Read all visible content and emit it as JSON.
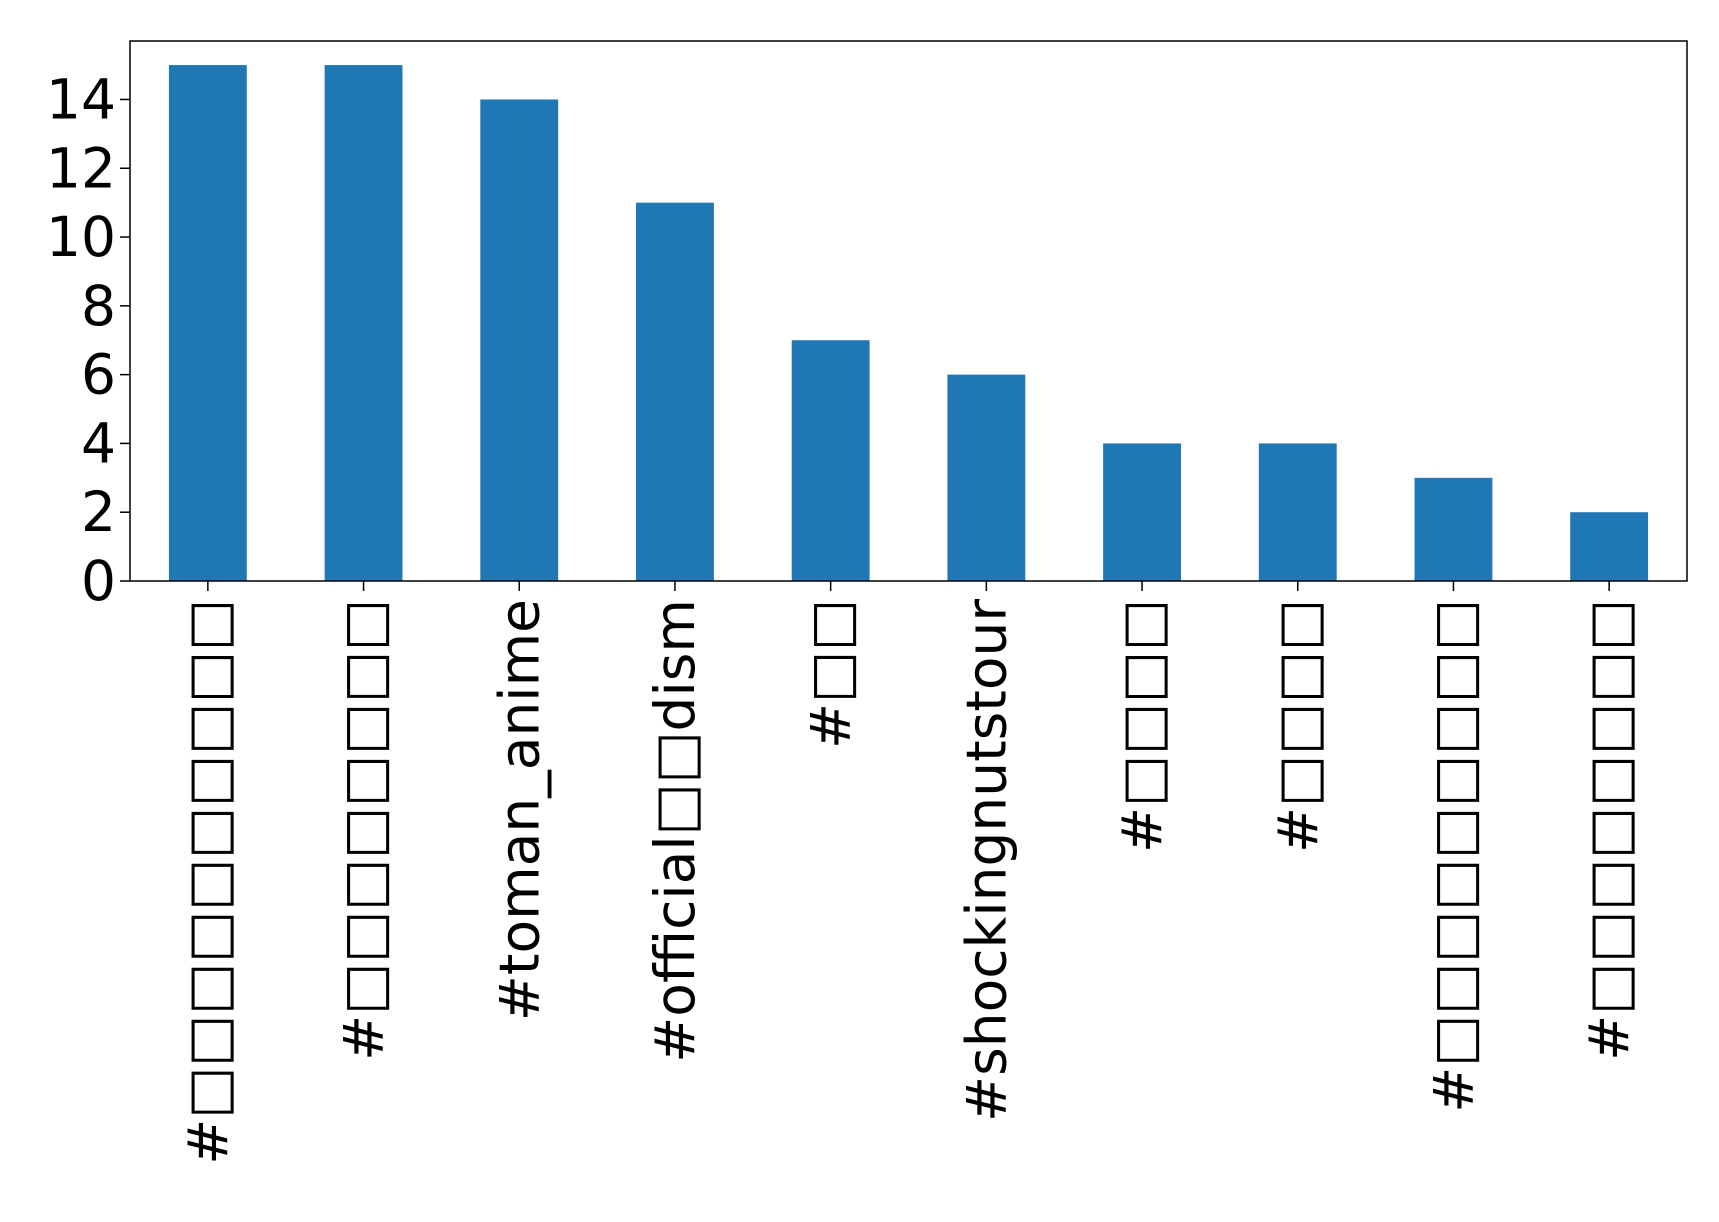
{
  "chart_data": {
    "type": "bar",
    "title": "",
    "xlabel": "",
    "ylabel": "",
    "categories": [
      "#□□□□□□□□□□",
      "#□□□□□□□□",
      "#toman_anime",
      "#official□□dism",
      "#□□",
      "#shockingnutstour",
      "#□□□□",
      "#□□□□",
      "#□□□□□□□□□",
      "#□□□□□□□□"
    ],
    "values": [
      15,
      15,
      14,
      11,
      7,
      6,
      4,
      4,
      3,
      2
    ],
    "ylim": [
      0,
      15.7
    ],
    "yticks": [
      0,
      2,
      4,
      6,
      8,
      10,
      12,
      14
    ],
    "ytick_labels": [
      "0",
      "2",
      "4",
      "6",
      "8",
      "10",
      "12",
      "14"
    ],
    "bar_color": "#1f77b4",
    "grid": false,
    "legend": "none"
  }
}
